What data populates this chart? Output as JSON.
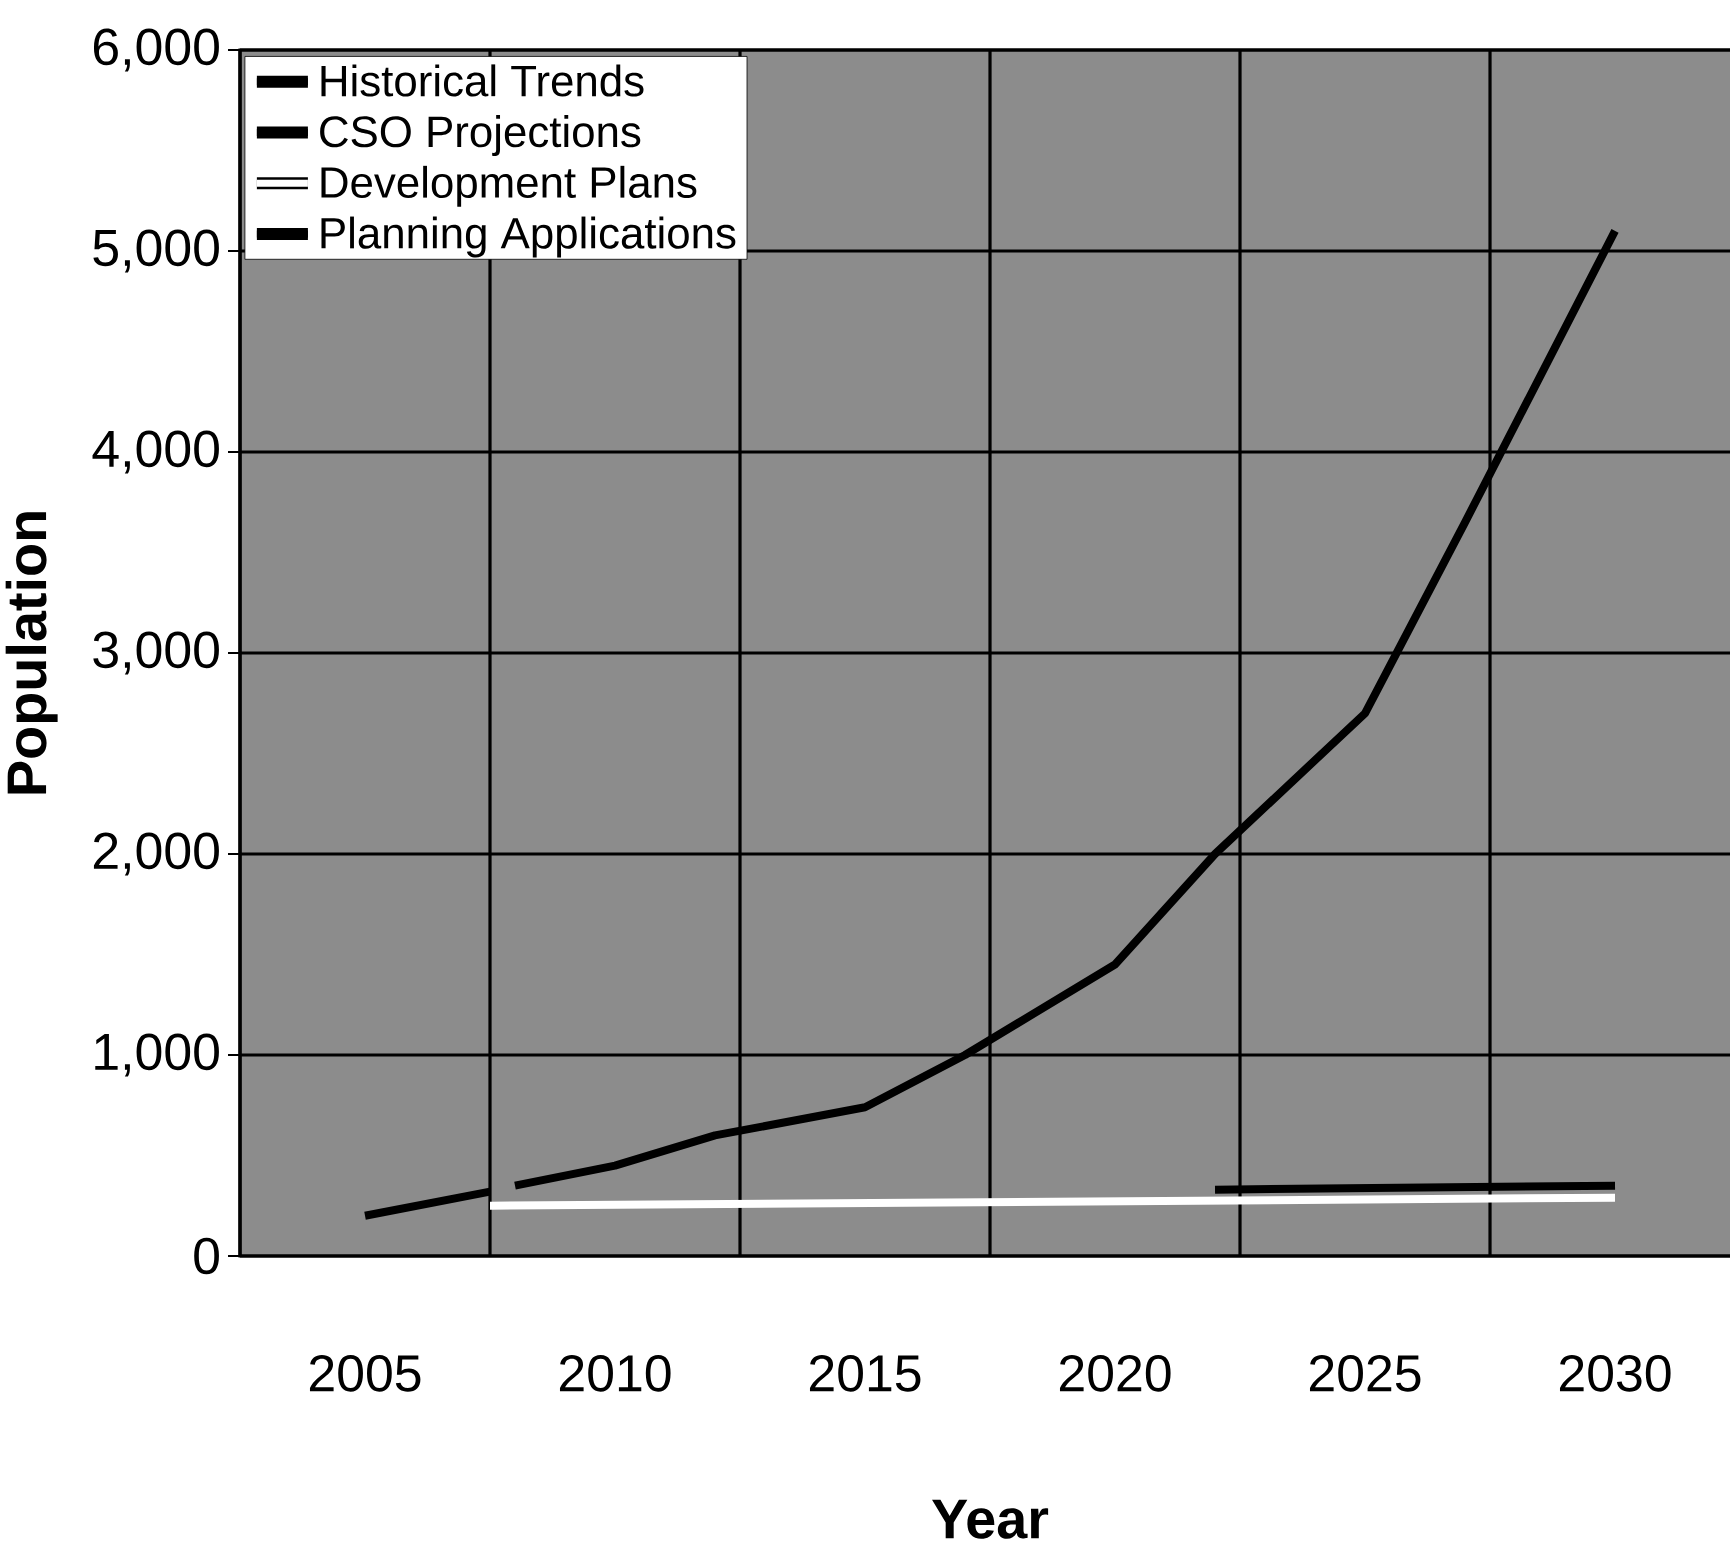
{
  "chart_data": {
    "type": "line",
    "xlabel": "Year",
    "ylabel": "Population",
    "xlim": [
      2002.5,
      2032.5
    ],
    "xticks": [
      {
        "value": 2002.5,
        "label": null
      },
      2005,
      {
        "value": 2007.5,
        "label": null
      },
      2010,
      {
        "value": 2012.5,
        "label": null
      },
      2015,
      {
        "value": 2017.5,
        "label": null
      },
      2020,
      {
        "value": 2022.5,
        "label": null
      },
      2025,
      {
        "value": 2027.5,
        "label": null
      },
      2030
    ],
    "ylim": [
      0,
      6000
    ],
    "yticks": [
      0,
      {
        "value": 1000,
        "label": "1,000"
      },
      {
        "value": 2000,
        "label": "2,000"
      },
      {
        "value": 3000,
        "label": "3,000"
      },
      {
        "value": 4000,
        "label": "4,000"
      },
      {
        "value": 5000,
        "label": "5,000"
      },
      {
        "value": 6000,
        "label": "6,000"
      }
    ],
    "grid": true,
    "legend": "top left",
    "line_style": "solid",
    "marker": "none",
    "series": [
      {
        "name": "Historical Trends",
        "color": "#000000",
        "x": [
          2005,
          2007.5
        ],
        "values": [
          200,
          320
        ]
      },
      {
        "name": "CSO Projections",
        "color": "#000000",
        "x": [
          2008,
          2010,
          2012,
          2015,
          2017,
          2020,
          2022,
          2025,
          2027,
          2030
        ],
        "values": [
          350,
          450,
          600,
          740,
          1000,
          1450,
          2000,
          2700,
          3650,
          5100
        ]
      },
      {
        "name": "Development Plans",
        "color": "#ffffff",
        "x": [
          2007.5,
          2030
        ],
        "values": [
          250,
          290
        ]
      },
      {
        "name": "Planning Applications",
        "color": "#000000",
        "x": [
          2022,
          2030
        ],
        "values": [
          330,
          350
        ]
      }
    ]
  }
}
